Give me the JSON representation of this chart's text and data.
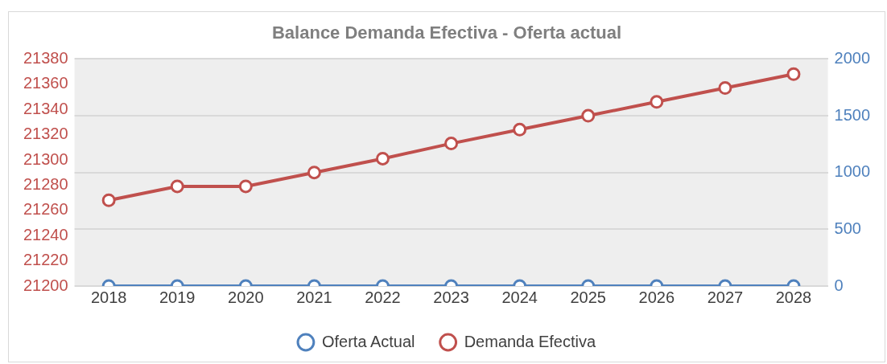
{
  "chart_data": {
    "type": "line",
    "title": "Balance Demanda Efectiva - Oferta actual",
    "categories": [
      "2018",
      "2019",
      "2020",
      "2021",
      "2022",
      "2023",
      "2024",
      "2025",
      "2026",
      "2027",
      "2028"
    ],
    "series": [
      {
        "name": "Oferta Actual",
        "color": "#4f81bd",
        "axis": "y2",
        "values": [
          0,
          0,
          0,
          0,
          0,
          0,
          0,
          0,
          0,
          0,
          0
        ]
      },
      {
        "name": "Demanda Efectiva",
        "color": "#c0504d",
        "values": [
          21268,
          21279,
          21279,
          21290,
          21301,
          21313,
          21324,
          21335,
          21346,
          21357,
          21368
        ]
      }
    ],
    "ylim": [
      21200,
      21380
    ],
    "yticks": [
      21200,
      21220,
      21240,
      21260,
      21280,
      21300,
      21320,
      21340,
      21360,
      21380
    ],
    "y2lim": [
      0,
      2000
    ],
    "y2ticks": [
      0,
      500,
      1000,
      1500,
      2000
    ],
    "grid": true,
    "legend": "bottom",
    "marker": "circle",
    "line_style": "solid"
  }
}
